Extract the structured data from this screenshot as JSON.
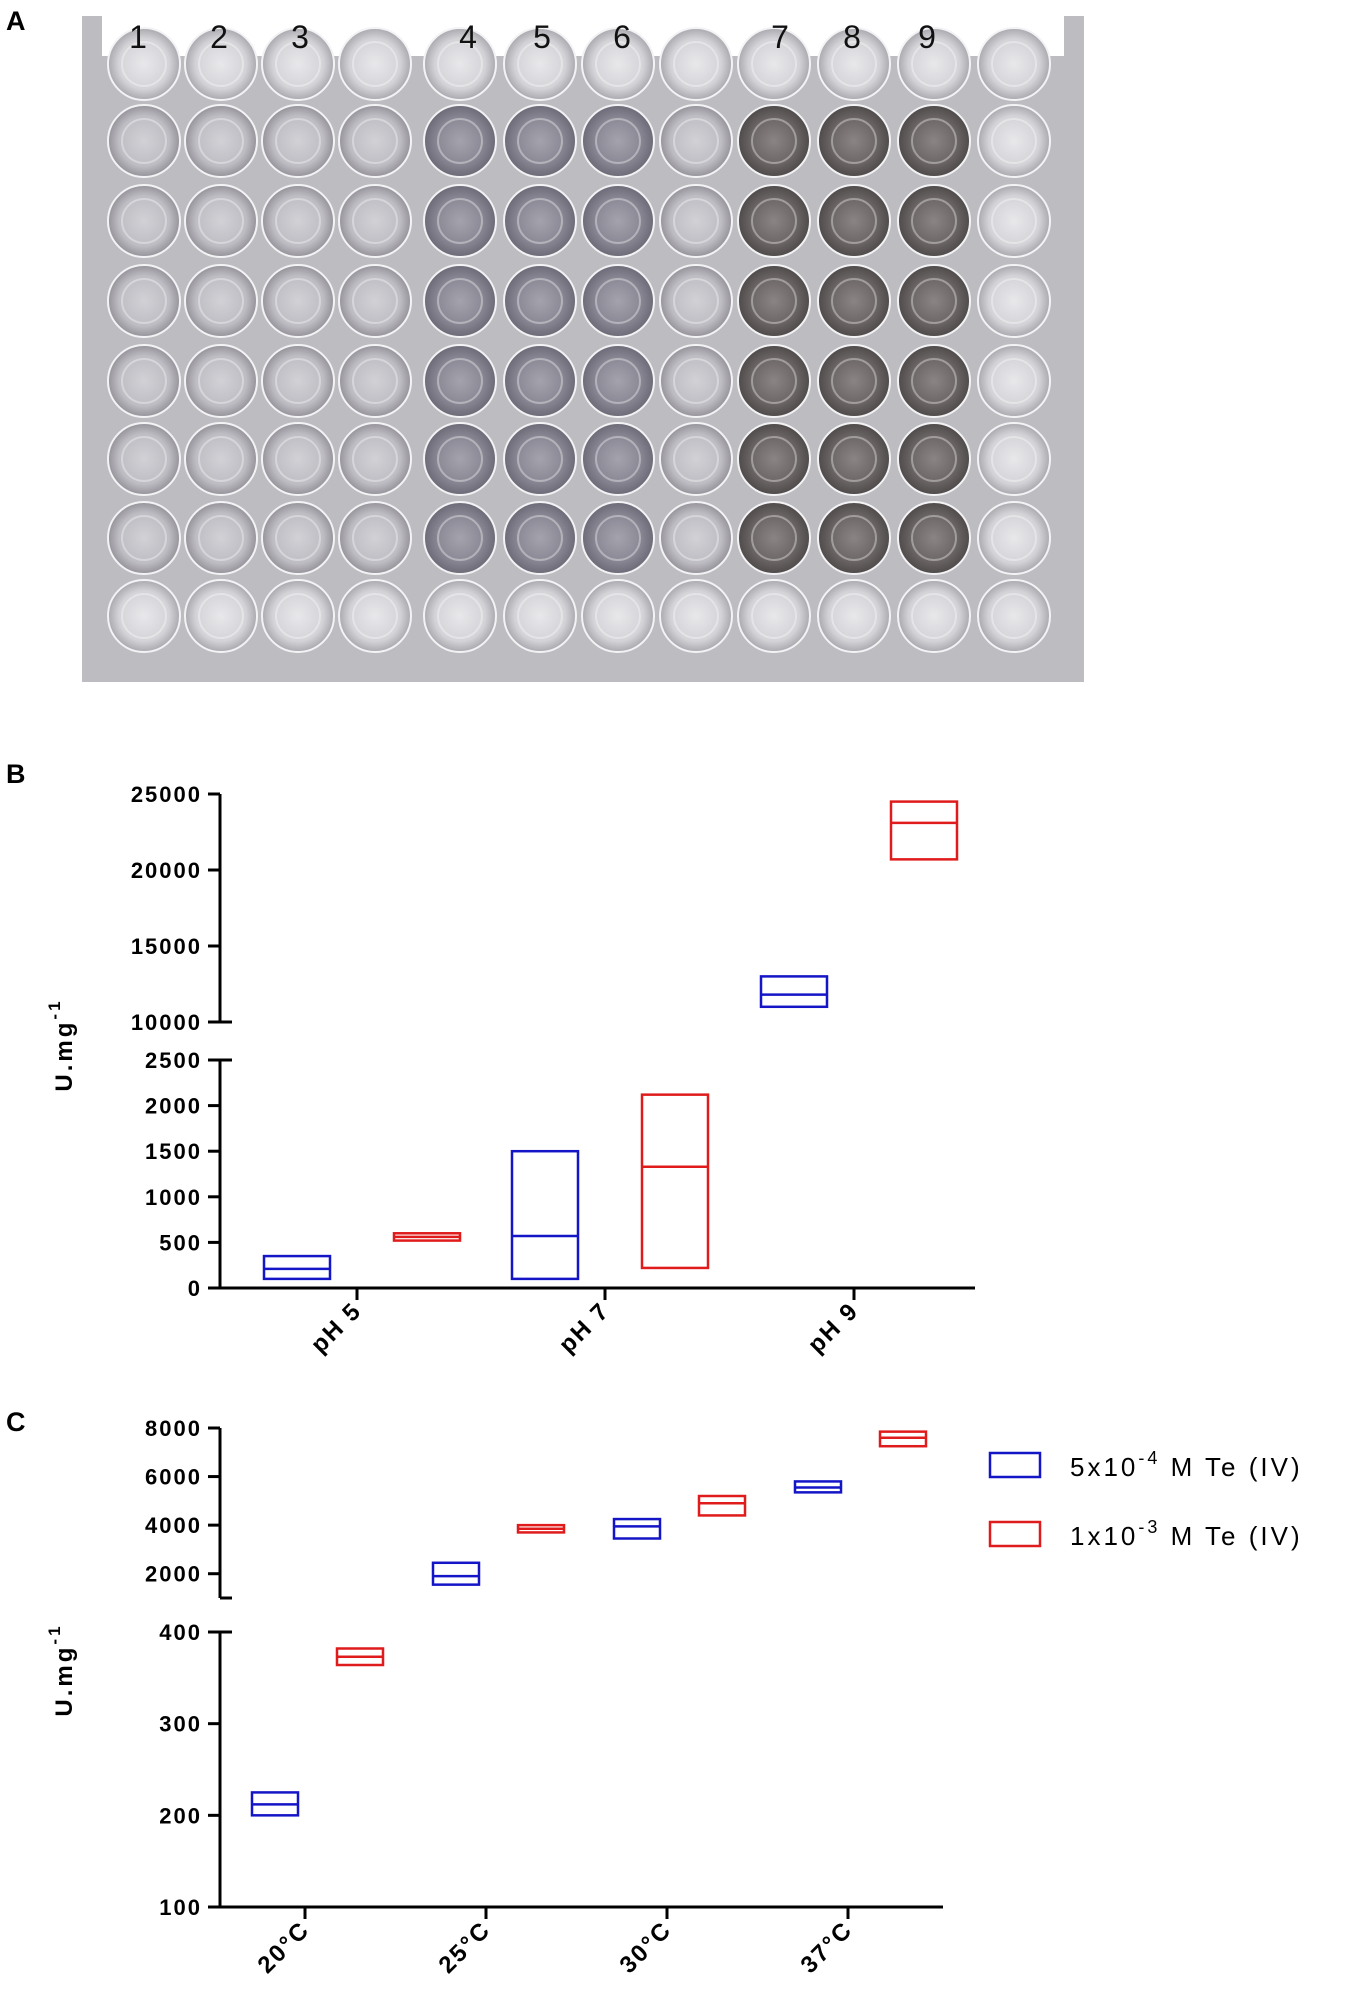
{
  "panels": {
    "a": "A",
    "b": "B",
    "c": "C"
  },
  "photo": {
    "column_labels": [
      "1",
      "2",
      "3",
      "4",
      "5",
      "6",
      "7",
      "8",
      "9"
    ]
  },
  "chart_data": [
    {
      "type": "box",
      "panel": "B",
      "categories": [
        "pH 5",
        "pH 7",
        "pH 9"
      ],
      "ylabel_main": "U.mg",
      "ylabel_sup": "-1",
      "axis_segments": {
        "lower": {
          "range": [
            0,
            2500
          ],
          "ticks": [
            "0",
            "500",
            "1000",
            "1500",
            "2000",
            "2500"
          ]
        },
        "upper": {
          "range": [
            10000,
            25000
          ],
          "ticks": [
            "10000",
            "15000",
            "20000",
            "25000"
          ]
        }
      },
      "series": [
        {
          "color": "#1515c8",
          "boxes": [
            {
              "category": "pH 5",
              "min": 100,
              "median": 210,
              "max": 350
            },
            {
              "category": "pH 7",
              "min": 100,
              "median": 570,
              "max": 1500
            },
            {
              "category": "pH 9",
              "min": 11000,
              "median": 11800,
              "max": 13000
            }
          ]
        },
        {
          "color": "#e01b1b",
          "boxes": [
            {
              "category": "pH 5",
              "min": 520,
              "median": 560,
              "max": 600
            },
            {
              "category": "pH 7",
              "min": 220,
              "median": 1330,
              "max": 2120
            },
            {
              "category": "pH 9",
              "min": 20700,
              "median": 23100,
              "max": 24500
            }
          ]
        }
      ]
    },
    {
      "type": "box",
      "panel": "C",
      "categories": [
        "20°C",
        "25°C",
        "30°C",
        "37°C"
      ],
      "ylabel_main": "U.mg",
      "ylabel_sup": "-1",
      "axis_segments": {
        "lower": {
          "range": [
            100,
            400
          ],
          "ticks": [
            "100",
            "200",
            "300",
            "400"
          ]
        },
        "upper": {
          "range": [
            1000,
            8000
          ],
          "ticks": [
            "2000",
            "4000",
            "6000",
            "8000"
          ]
        }
      },
      "legend": {
        "placement": "top-right",
        "entries": [
          {
            "prefix": "5x10",
            "exp": "-4",
            "suffix": " M Te (IV)",
            "color": "#1515c8"
          },
          {
            "prefix": "1x10",
            "exp": "-3",
            "suffix": " M Te (IV)",
            "color": "#e01b1b"
          }
        ]
      },
      "series": [
        {
          "color": "#1515c8",
          "boxes": [
            {
              "category": "20°C",
              "min": 200,
              "median": 212,
              "max": 225
            },
            {
              "category": "25°C",
              "min": 1550,
              "median": 1900,
              "max": 2450
            },
            {
              "category": "30°C",
              "min": 3450,
              "median": 3950,
              "max": 4250
            },
            {
              "category": "37°C",
              "min": 5350,
              "median": 5550,
              "max": 5800
            }
          ]
        },
        {
          "color": "#e01b1b",
          "boxes": [
            {
              "category": "20°C",
              "min": 364,
              "median": 373,
              "max": 382
            },
            {
              "category": "25°C",
              "min": 3700,
              "median": 3850,
              "max": 4000
            },
            {
              "category": "30°C",
              "min": 4400,
              "median": 4900,
              "max": 5200
            },
            {
              "category": "37°C",
              "min": 7250,
              "median": 7600,
              "max": 7850
            }
          ]
        }
      ]
    }
  ]
}
